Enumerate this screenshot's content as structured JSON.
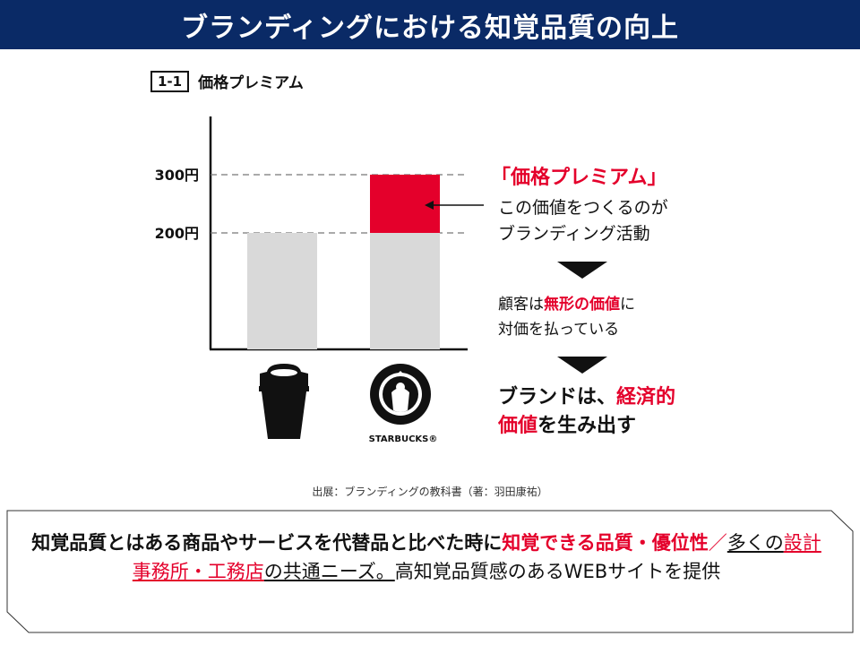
{
  "header": {
    "title": "ブランディングにおける知覚品質の向上"
  },
  "figure": {
    "number": "1-1",
    "title": "価格プレミアム"
  },
  "chart_data": {
    "type": "bar",
    "categories": [
      "",
      "STARBUCKS®"
    ],
    "values": [
      200,
      300
    ],
    "series": [
      {
        "name": "",
        "values": [
          200,
          200
        ]
      },
      {
        "name": "",
        "values": [
          0,
          100
        ]
      }
    ],
    "ylim": [
      0,
      400
    ],
    "ytick_labels": [
      "200円",
      "300円"
    ],
    "ytick_values": [
      200,
      300
    ],
    "grid": "dashed reference lines at 200 and 300",
    "colors": {
      "base": "#d9d9d9",
      "premium": "#e4002b",
      "axis": "#111111",
      "grid": "#777777"
    }
  },
  "icons": {
    "coffee": "coffee-cup-icon",
    "starbucks": "starbucks-logo-icon"
  },
  "annotations": {
    "premium_title": "「価格プレミアム」",
    "premium_desc_1": "この価値をつくるのが",
    "premium_desc_2": "ブランディング活動",
    "customer_1_a": "顧客は",
    "customer_1_b": "無形の価値",
    "customer_1_c": "に",
    "customer_2": "対価を払っている",
    "result_1_a": "ブランドは、",
    "result_1_b": "経済的",
    "result_2_a": "価値",
    "result_2_b": "を生み出す"
  },
  "source": "出展：ブランディングの教科書（著：羽田康祐）",
  "callout": {
    "part1": "知覚品質とはある商品やサービスを代替品と比べた時に",
    "part2": "知覚できる品質・優位性",
    "sep": "／",
    "part3": "多くの",
    "part4": "設計事務所・工務店",
    "part5": "の共通ニーズ。",
    "part6": "高知覚品質感のあるWEBサイトを提供"
  }
}
